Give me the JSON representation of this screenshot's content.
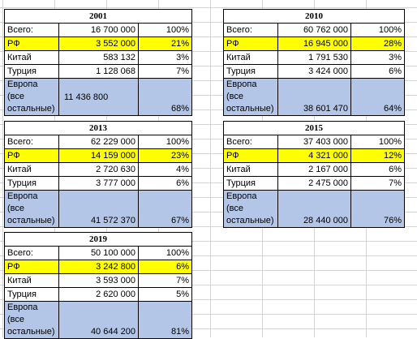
{
  "tables": [
    {
      "year": "2001",
      "rows": [
        {
          "label": "Всего:",
          "value": "16 700 000",
          "pct": "100%"
        },
        {
          "label": "РФ",
          "value": "3 552 000",
          "pct": "21%"
        },
        {
          "label": "Китай",
          "value": "583 132",
          "pct": "3%"
        },
        {
          "label": "Турция",
          "value": "1 128 068",
          "pct": "7%"
        },
        {
          "label": "Европа (все остальные)",
          "value": "11 436 800",
          "pct": "68%"
        }
      ]
    },
    {
      "year": "2010",
      "rows": [
        {
          "label": "Всего:",
          "value": "60 762 000",
          "pct": "100%"
        },
        {
          "label": "РФ",
          "value": "16 945 000",
          "pct": "28%"
        },
        {
          "label": "Китай",
          "value": "1 791 530",
          "pct": "3%"
        },
        {
          "label": "Турция",
          "value": "3 424 000",
          "pct": "6%"
        },
        {
          "label": "Европа (все остальные)",
          "value": "38 601 470",
          "pct": "64%"
        }
      ]
    },
    {
      "year": "2013",
      "rows": [
        {
          "label": "Всего:",
          "value": "62 229 000",
          "pct": "100%"
        },
        {
          "label": "РФ",
          "value": "14 159 000",
          "pct": "23%"
        },
        {
          "label": "Китай",
          "value": "2 720 630",
          "pct": "4%"
        },
        {
          "label": "Турция",
          "value": "3 777 000",
          "pct": "6%"
        },
        {
          "label": "Европа (все остальные)",
          "value": "41 572 370",
          "pct": "67%"
        }
      ]
    },
    {
      "year": "2015",
      "rows": [
        {
          "label": "Всего:",
          "value": "37 403 000",
          "pct": "100%"
        },
        {
          "label": "РФ",
          "value": "4 321 000",
          "pct": "12%"
        },
        {
          "label": "Китай",
          "value": "2 167 000",
          "pct": "6%"
        },
        {
          "label": "Турция",
          "value": "2 475 000",
          "pct": "7%"
        },
        {
          "label": "Европа (все остальные)",
          "value": "28 440 000",
          "pct": "76%"
        }
      ]
    },
    {
      "year": "2019",
      "rows": [
        {
          "label": "Всего:",
          "value": "50 100 000",
          "pct": "100%"
        },
        {
          "label": "РФ",
          "value": "3 242 800",
          "pct": "6%"
        },
        {
          "label": "Китай",
          "value": "3 593 000",
          "pct": "7%"
        },
        {
          "label": "Турция",
          "value": "2 620 000",
          "pct": "5%"
        },
        {
          "label": "Европа (все остальные)",
          "value": "40 644 200",
          "pct": "81%"
        }
      ]
    }
  ],
  "colors": {
    "highlight_rf": "#ffff00",
    "highlight_europe": "#b4c6e7",
    "gridline": "#d4d4d4"
  }
}
